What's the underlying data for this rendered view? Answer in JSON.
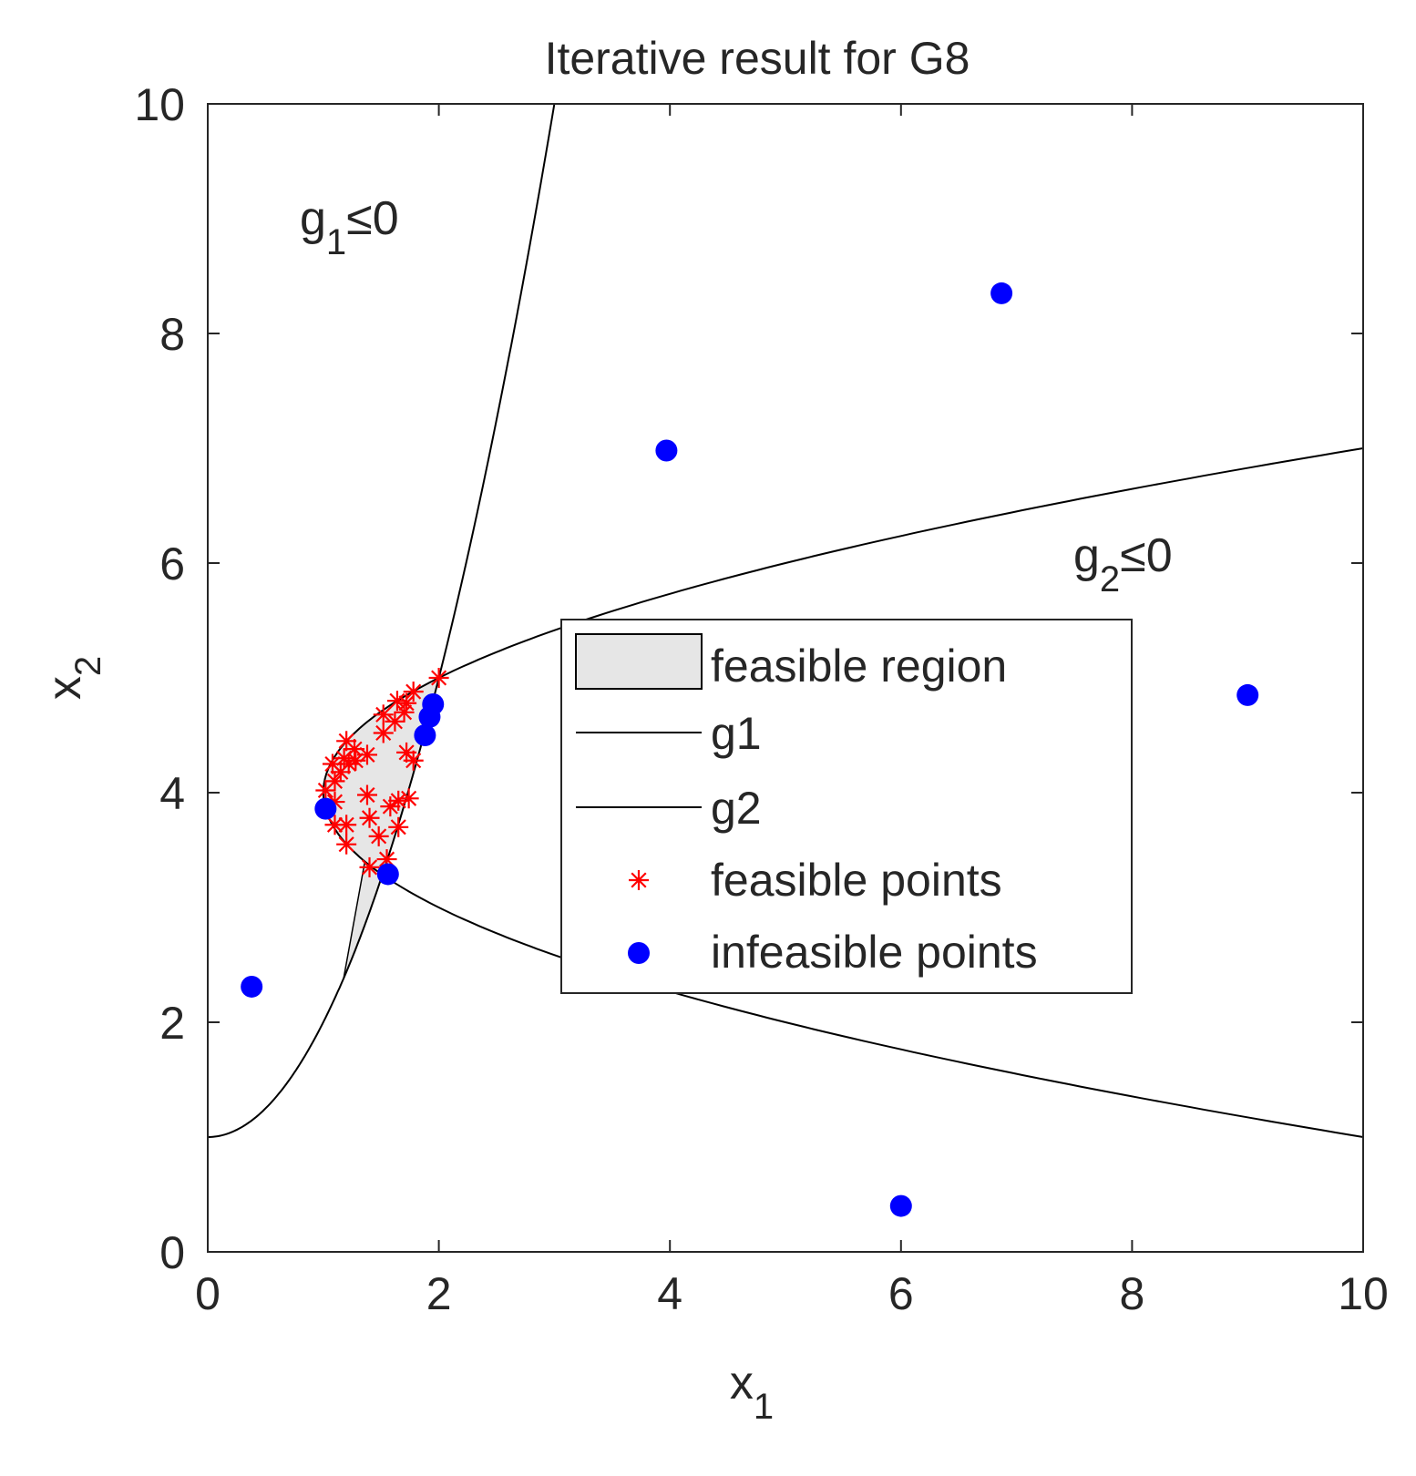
{
  "chart_data": {
    "type": "scatter",
    "title": "Iterative result for G8",
    "xlabel": {
      "base": "x",
      "sub": "1"
    },
    "ylabel": {
      "base": "x",
      "sub": "2"
    },
    "xlim": [
      0,
      10
    ],
    "ylim": [
      0,
      10
    ],
    "xticks": [
      0,
      2,
      4,
      6,
      8,
      10
    ],
    "yticks": [
      0,
      2,
      4,
      6,
      8,
      10
    ],
    "grid": false,
    "legend_position": "center-right",
    "annotations": [
      {
        "base": "g",
        "sub": "1",
        "rel": "≤0",
        "x": 0.8,
        "y": 9.0
      },
      {
        "base": "g",
        "sub": "2",
        "rel": "≤0",
        "x": 7.5,
        "y": 6.0
      }
    ],
    "curves": [
      {
        "name": "g1",
        "equation": "x2 = x1^2 + 1",
        "color": "#000000"
      },
      {
        "name": "g2",
        "equation": "x1 = 1 + (x2 - 4)^2",
        "color": "#000000"
      }
    ],
    "region": {
      "name": "feasible region",
      "fill": "#e6e6e6",
      "stroke": "#000000"
    },
    "series": [
      {
        "name": "feasible points",
        "marker": "asterisk",
        "color": "#ff0000",
        "points": [
          [
            2.0,
            5.0
          ],
          [
            1.78,
            4.88
          ],
          [
            1.64,
            4.8
          ],
          [
            1.72,
            4.78
          ],
          [
            1.52,
            4.68
          ],
          [
            1.7,
            4.7
          ],
          [
            1.62,
            4.62
          ],
          [
            1.52,
            4.52
          ],
          [
            1.2,
            4.45
          ],
          [
            1.27,
            4.38
          ],
          [
            1.38,
            4.33
          ],
          [
            1.72,
            4.35
          ],
          [
            1.78,
            4.28
          ],
          [
            1.08,
            4.25
          ],
          [
            1.18,
            4.3
          ],
          [
            1.22,
            4.25
          ],
          [
            1.28,
            4.28
          ],
          [
            1.15,
            4.18
          ],
          [
            1.1,
            4.1
          ],
          [
            1.02,
            4.02
          ],
          [
            1.38,
            3.98
          ],
          [
            1.74,
            3.95
          ],
          [
            1.65,
            3.93
          ],
          [
            1.1,
            3.92
          ],
          [
            1.58,
            3.88
          ],
          [
            1.2,
            3.72
          ],
          [
            1.1,
            3.72
          ],
          [
            1.4,
            3.78
          ],
          [
            1.48,
            3.62
          ],
          [
            1.65,
            3.7
          ],
          [
            1.2,
            3.55
          ],
          [
            1.4,
            3.35
          ],
          [
            1.55,
            3.42
          ]
        ]
      },
      {
        "name": "infeasible points",
        "marker": "filled-circle",
        "color": "#0000ff",
        "points": [
          [
            6.87,
            8.35
          ],
          [
            3.97,
            6.98
          ],
          [
            9.0,
            4.85
          ],
          [
            1.95,
            4.77
          ],
          [
            1.92,
            4.66
          ],
          [
            1.88,
            4.5
          ],
          [
            1.02,
            3.86
          ],
          [
            1.56,
            3.29
          ],
          [
            0.38,
            2.31
          ],
          [
            6.0,
            0.4
          ]
        ]
      }
    ]
  }
}
